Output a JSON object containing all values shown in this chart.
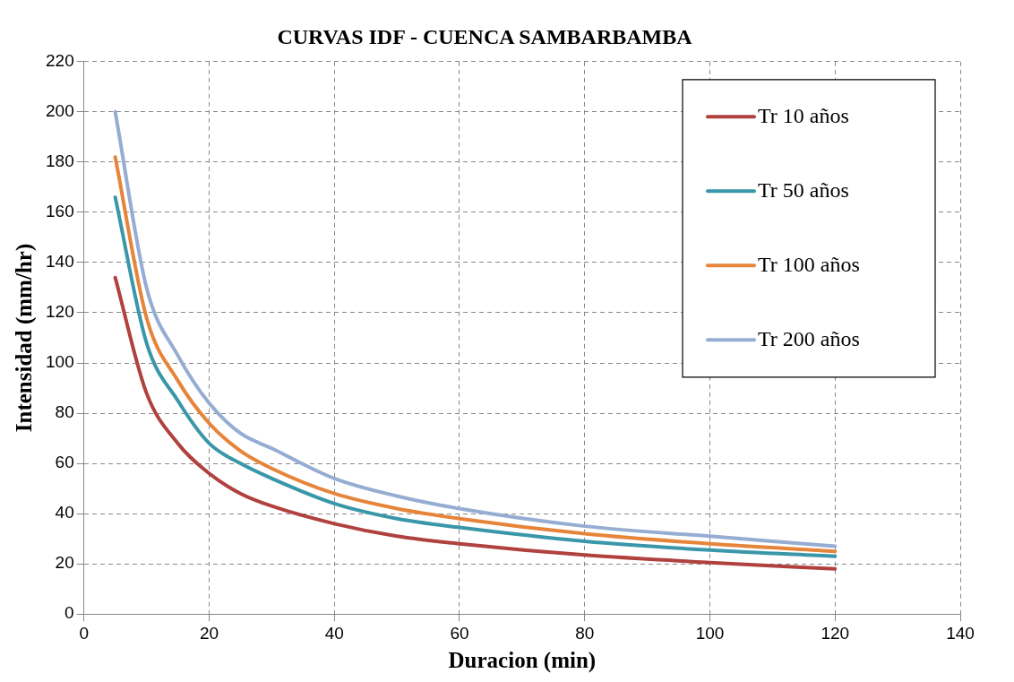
{
  "chart_data": {
    "type": "line",
    "title": "CURVAS IDF - CUENCA SAMBARBAMBA",
    "xlabel": "Duracion (min)",
    "ylabel": "Intensidad (mm/hr)",
    "x": [
      5,
      10,
      15,
      20,
      25,
      30,
      40,
      50,
      60,
      80,
      100,
      120
    ],
    "series": [
      {
        "name": "Tr 10 años",
        "color": "#b0413e",
        "values": [
          134,
          88,
          68,
          56,
          48,
          43,
          36,
          31,
          28,
          23.5,
          20.5,
          18
        ]
      },
      {
        "name": "Tr 50 años",
        "color": "#3a97a9",
        "values": [
          166,
          108,
          85,
          68,
          60,
          54,
          44,
          38,
          34.5,
          29,
          25.5,
          23
        ]
      },
      {
        "name": "Tr 100 años",
        "color": "#e6853a",
        "values": [
          182,
          118,
          93,
          76,
          65,
          58,
          48,
          42,
          38,
          32,
          28,
          25
        ]
      },
      {
        "name": "Tr 200 años",
        "color": "#95add3",
        "values": [
          200,
          130,
          103,
          84,
          72,
          66,
          54,
          47,
          42,
          35,
          31,
          27
        ]
      }
    ],
    "xlim": [
      0,
      140
    ],
    "xticks": [
      0,
      20,
      40,
      60,
      80,
      100,
      120,
      140
    ],
    "ylim": [
      0,
      220
    ],
    "yticks": [
      0,
      20,
      40,
      60,
      80,
      100,
      120,
      140,
      160,
      180,
      200,
      220
    ],
    "grid": true,
    "legend": "top right",
    "marker": "none",
    "line_style": "solid"
  }
}
